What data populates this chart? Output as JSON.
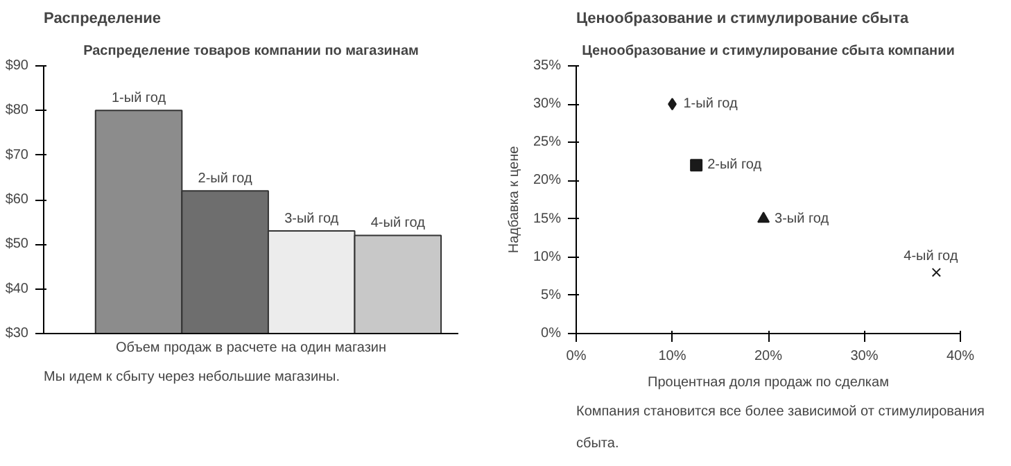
{
  "chart_data": [
    {
      "type": "bar",
      "title": "Распределение",
      "subtitle": "Распределение товаров компании по магазинам",
      "xlabel": "Объем продаж в расчете на один магазин",
      "categories": [
        "1-ый год",
        "2-ый год",
        "3-ый год",
        "4-ый год"
      ],
      "values": [
        80,
        62,
        53,
        52
      ],
      "colors": [
        "#8c8c8c",
        "#6e6e6e",
        "#ececec",
        "#c8c8c8"
      ],
      "ylim": [
        30,
        90
      ],
      "yticks": [
        {
          "value": 30,
          "label": "$30"
        },
        {
          "value": 40,
          "label": "$40"
        },
        {
          "value": 50,
          "label": "$50"
        },
        {
          "value": 60,
          "label": "$60"
        },
        {
          "value": 70,
          "label": "$70"
        },
        {
          "value": 80,
          "label": "$80"
        },
        {
          "value": 90,
          "label": "$90"
        }
      ],
      "tick_labels": "y",
      "grid": false,
      "annotations": [
        "Мы идем к сбыту через небольшие магазины."
      ]
    },
    {
      "type": "scatter",
      "title": "Ценообразование и стимулирование сбыта",
      "subtitle": "Ценообразование и стимулирование сбыта компании",
      "xlabel": "Процентная доля продаж по сделкам",
      "ylabel": "Надбавка к цене",
      "series": [
        {
          "name": "1-ый год",
          "color": "#1a1a1a",
          "marker": "diamond",
          "x": [
            10
          ],
          "values": [
            30
          ]
        },
        {
          "name": "2-ый год",
          "color": "#1a1a1a",
          "marker": "square",
          "x": [
            12.5
          ],
          "values": [
            22
          ]
        },
        {
          "name": "3-ый год",
          "color": "#1a1a1a",
          "marker": "triangle",
          "x": [
            19.5
          ],
          "values": [
            15
          ]
        },
        {
          "name": "4-ый год",
          "color": "#1a1a1a",
          "marker": "cross",
          "x": [
            37.5
          ],
          "values": [
            8
          ]
        }
      ],
      "xlim": [
        0,
        40
      ],
      "xticks": [
        {
          "value": 0,
          "label": "0%"
        },
        {
          "value": 10,
          "label": "10%"
        },
        {
          "value": 20,
          "label": "20%"
        },
        {
          "value": 30,
          "label": "30%"
        },
        {
          "value": 40,
          "label": "40%"
        }
      ],
      "ylim": [
        0,
        35
      ],
      "yticks": [
        {
          "value": 0,
          "label": "0%"
        },
        {
          "value": 5,
          "label": "5%"
        },
        {
          "value": 10,
          "label": "10%"
        },
        {
          "value": 15,
          "label": "15%"
        },
        {
          "value": 20,
          "label": "20%"
        },
        {
          "value": 25,
          "label": "25%"
        },
        {
          "value": 30,
          "label": "30%"
        },
        {
          "value": 35,
          "label": "35%"
        }
      ],
      "grid": false,
      "annotations": [
        "Компания становится все более зависимой от стимулирования сбыта."
      ]
    }
  ]
}
